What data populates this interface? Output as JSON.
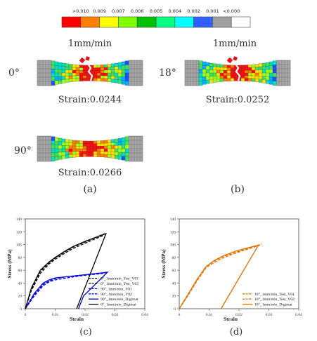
{
  "colorbar": {
    "labels": [
      ">0.010",
      "0.009",
      "0.007",
      "0.006",
      "0.005",
      "0.004",
      "0.002",
      "0.001",
      "<0.000"
    ],
    "colors": [
      "#ff0000",
      "#ff8000",
      "#ffff00",
      "#80ff00",
      "#00c000",
      "#00ff80",
      "#00ffff",
      "#3060ff",
      "#a0a0a0",
      "#ffffff"
    ]
  },
  "specimens": {
    "rate_label_a": "1mm/min",
    "rate_label_b": "1mm/min",
    "items": [
      {
        "angle": "0°",
        "strain": "Strain:0.0244"
      },
      {
        "angle": "18°",
        "strain": "Strain:0.0252"
      },
      {
        "angle": "90°",
        "strain": "Strain:0.0266"
      }
    ],
    "caption_a": "(a)",
    "caption_b": "(b)"
  },
  "captions": {
    "c": "(c)",
    "d": "(d)"
  },
  "chart_data": [
    {
      "type": "line",
      "xlabel": "Strain",
      "ylabel": "Stress (MPa)",
      "xlim": [
        0,
        0.04
      ],
      "ylim": [
        0,
        140
      ],
      "xticks": [
        "0",
        "0.01",
        "0.02",
        "0.03",
        "0.04"
      ],
      "yticks": [
        "0",
        "20",
        "40",
        "60",
        "80",
        "100",
        "120",
        "140"
      ],
      "legend_position": "bottom-right",
      "series": [
        {
          "name": "0°_1mm/min_Test_V01",
          "color": "#000000",
          "style": "dash",
          "x": [
            0,
            0.002,
            0.005,
            0.008,
            0.01,
            0.013,
            0.016,
            0.02,
            0.024,
            0.0265
          ],
          "y": [
            0,
            30,
            58,
            72,
            79,
            88,
            96,
            104,
            112,
            117
          ]
        },
        {
          "name": "0°_1mm/min_Test_V02",
          "color": "#000000",
          "style": "dash",
          "x": [
            0,
            0.002,
            0.005,
            0.008,
            0.01,
            0.013,
            0.016,
            0.02,
            0.024,
            0.026
          ],
          "y": [
            0,
            28,
            55,
            70,
            77,
            86,
            94,
            102,
            110,
            114
          ]
        },
        {
          "name": "90°_1mm/min_V01",
          "color": "#0000dd",
          "style": "dash",
          "x": [
            0,
            0.003,
            0.006,
            0.008,
            0.01,
            0.014,
            0.018,
            0.022,
            0.026,
            0.0275
          ],
          "y": [
            0,
            22,
            38,
            43,
            47,
            50,
            52,
            54,
            56,
            57
          ]
        },
        {
          "name": "90°_1mm/min_V02",
          "color": "#0000dd",
          "style": "dash",
          "x": [
            0,
            0.003,
            0.006,
            0.008,
            0.01,
            0.014,
            0.018,
            0.022,
            0.026,
            0.027
          ],
          "y": [
            0,
            20,
            36,
            42,
            45,
            48,
            51,
            53,
            55,
            56
          ]
        },
        {
          "name": "90°_1mm/min_Digimat",
          "color": "#0000dd",
          "style": "solid",
          "x": [
            0,
            0.003,
            0.006,
            0.008,
            0.01,
            0.014,
            0.018,
            0.022,
            0.026,
            0.0275,
            0.0195,
            0.0178
          ],
          "y": [
            0,
            24,
            40,
            45,
            48,
            50,
            52,
            54,
            56,
            57,
            20,
            0
          ]
        },
        {
          "name": "0°_1mm/min_Digimat",
          "color": "#000000",
          "style": "solid",
          "x": [
            0,
            0.002,
            0.005,
            0.008,
            0.01,
            0.013,
            0.016,
            0.02,
            0.024,
            0.027,
            0.0172
          ],
          "y": [
            0,
            32,
            60,
            73,
            80,
            89,
            97,
            105,
            112,
            117,
            0
          ]
        }
      ]
    },
    {
      "type": "line",
      "xlabel": "Strain",
      "ylabel": "Stress (MPa)",
      "xlim": [
        0,
        0.04
      ],
      "ylim": [
        0,
        140
      ],
      "xticks": [
        "0",
        "0.01",
        "0.02",
        "0.03",
        "0.04"
      ],
      "yticks": [
        "0",
        "20",
        "40",
        "60",
        "80",
        "100",
        "120",
        "140"
      ],
      "legend_position": "bottom-right",
      "series": [
        {
          "name": "18°_1mm/min_Test_V01",
          "color": "#e07000",
          "style": "dash",
          "x": [
            0,
            0.003,
            0.006,
            0.009,
            0.012,
            0.015,
            0.019,
            0.023,
            0.0275
          ],
          "y": [
            0,
            22,
            45,
            66,
            75,
            82,
            88,
            94,
            101
          ]
        },
        {
          "name": "18°_1mm/min_Test_V02",
          "color": "#e07000",
          "style": "dash",
          "x": [
            0,
            0.003,
            0.006,
            0.009,
            0.012,
            0.015,
            0.019,
            0.023,
            0.027
          ],
          "y": [
            0,
            21,
            44,
            64,
            73,
            80,
            87,
            93,
            99
          ]
        },
        {
          "name": "18°_1mm/min_Digimat",
          "color": "#e07000",
          "style": "solid",
          "x": [
            0,
            0.003,
            0.006,
            0.009,
            0.012,
            0.015,
            0.019,
            0.023,
            0.0265,
            0.014
          ],
          "y": [
            0,
            23,
            46,
            66,
            76,
            83,
            90,
            95,
            99,
            0
          ]
        }
      ]
    }
  ]
}
